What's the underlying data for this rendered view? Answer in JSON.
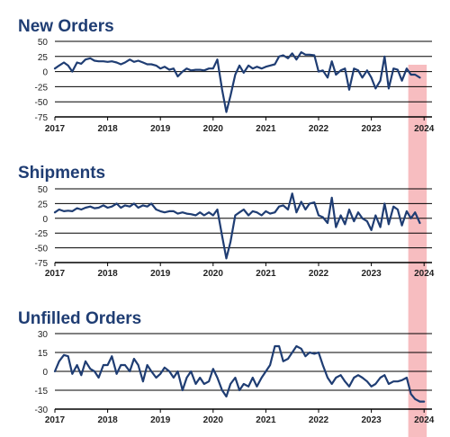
{
  "colors": {
    "line": "#1f3d73",
    "title": "#1f3d73",
    "axis": "#000000",
    "highlight": "#f4a7ab"
  },
  "chart_data": [
    {
      "type": "line",
      "title": "New Orders",
      "xlabel": "",
      "ylabel": "",
      "ylim": [
        -75,
        50
      ],
      "yticks": [
        "50",
        "25",
        "0",
        "-25",
        "-50",
        "-75"
      ],
      "xticks": [
        "2017",
        "2018",
        "2019",
        "2020",
        "2021",
        "2022",
        "2023",
        "2024"
      ],
      "xlim": [
        2017,
        2024.15
      ],
      "grid": "horizontal",
      "highlight_range": [
        2023.7,
        2024.05
      ],
      "series": [
        {
          "values": [
            [
              2017.0,
              5
            ],
            [
              2017.08,
              10
            ],
            [
              2017.17,
              15
            ],
            [
              2017.25,
              10
            ],
            [
              2017.33,
              0
            ],
            [
              2017.42,
              15
            ],
            [
              2017.5,
              13
            ],
            [
              2017.58,
              20
            ],
            [
              2017.67,
              22
            ],
            [
              2017.75,
              18
            ],
            [
              2017.83,
              17
            ],
            [
              2017.92,
              17
            ],
            [
              2018.0,
              16
            ],
            [
              2018.08,
              17
            ],
            [
              2018.17,
              15
            ],
            [
              2018.25,
              12
            ],
            [
              2018.33,
              15
            ],
            [
              2018.42,
              20
            ],
            [
              2018.5,
              16
            ],
            [
              2018.58,
              18
            ],
            [
              2018.67,
              15
            ],
            [
              2018.75,
              12
            ],
            [
              2018.83,
              12
            ],
            [
              2018.92,
              10
            ],
            [
              2019.0,
              5
            ],
            [
              2019.08,
              8
            ],
            [
              2019.17,
              3
            ],
            [
              2019.25,
              5
            ],
            [
              2019.33,
              -8
            ],
            [
              2019.42,
              0
            ],
            [
              2019.5,
              5
            ],
            [
              2019.58,
              2
            ],
            [
              2019.67,
              3
            ],
            [
              2019.75,
              3
            ],
            [
              2019.83,
              2
            ],
            [
              2019.92,
              5
            ],
            [
              2020.0,
              5
            ],
            [
              2020.08,
              20
            ],
            [
              2020.17,
              -30
            ],
            [
              2020.25,
              -67
            ],
            [
              2020.33,
              -40
            ],
            [
              2020.42,
              -5
            ],
            [
              2020.5,
              10
            ],
            [
              2020.58,
              -2
            ],
            [
              2020.67,
              10
            ],
            [
              2020.75,
              5
            ],
            [
              2020.83,
              8
            ],
            [
              2020.92,
              5
            ],
            [
              2021.0,
              8
            ],
            [
              2021.08,
              10
            ],
            [
              2021.17,
              12
            ],
            [
              2021.25,
              25
            ],
            [
              2021.33,
              27
            ],
            [
              2021.42,
              22
            ],
            [
              2021.5,
              30
            ],
            [
              2021.58,
              20
            ],
            [
              2021.67,
              32
            ],
            [
              2021.75,
              28
            ],
            [
              2021.83,
              28
            ],
            [
              2021.92,
              27
            ],
            [
              2022.0,
              0
            ],
            [
              2022.08,
              2
            ],
            [
              2022.17,
              -10
            ],
            [
              2022.25,
              17
            ],
            [
              2022.33,
              -5
            ],
            [
              2022.42,
              2
            ],
            [
              2022.5,
              5
            ],
            [
              2022.58,
              -30
            ],
            [
              2022.67,
              5
            ],
            [
              2022.75,
              2
            ],
            [
              2022.83,
              -10
            ],
            [
              2022.92,
              2
            ],
            [
              2023.0,
              -10
            ],
            [
              2023.08,
              -28
            ],
            [
              2023.17,
              -15
            ],
            [
              2023.25,
              25
            ],
            [
              2023.33,
              -28
            ],
            [
              2023.42,
              5
            ],
            [
              2023.5,
              3
            ],
            [
              2023.58,
              -15
            ],
            [
              2023.67,
              5
            ],
            [
              2023.75,
              -5
            ],
            [
              2023.83,
              -5
            ],
            [
              2023.92,
              -10
            ]
          ]
        }
      ]
    },
    {
      "type": "line",
      "title": "Shipments",
      "xlabel": "",
      "ylabel": "",
      "ylim": [
        -75,
        50
      ],
      "yticks": [
        "50",
        "25",
        "0",
        "-25",
        "-50",
        "-75"
      ],
      "xticks": [
        "2017",
        "2018",
        "2019",
        "2020",
        "2021",
        "2022",
        "2023",
        "2024"
      ],
      "xlim": [
        2017,
        2024.15
      ],
      "grid": "horizontal",
      "highlight_range": [
        2023.7,
        2024.05
      ],
      "series": [
        {
          "values": [
            [
              2017.0,
              10
            ],
            [
              2017.08,
              15
            ],
            [
              2017.17,
              12
            ],
            [
              2017.25,
              13
            ],
            [
              2017.33,
              12
            ],
            [
              2017.42,
              17
            ],
            [
              2017.5,
              15
            ],
            [
              2017.58,
              18
            ],
            [
              2017.67,
              20
            ],
            [
              2017.75,
              17
            ],
            [
              2017.83,
              18
            ],
            [
              2017.92,
              22
            ],
            [
              2018.0,
              18
            ],
            [
              2018.08,
              20
            ],
            [
              2018.17,
              25
            ],
            [
              2018.25,
              18
            ],
            [
              2018.33,
              22
            ],
            [
              2018.42,
              20
            ],
            [
              2018.5,
              25
            ],
            [
              2018.58,
              18
            ],
            [
              2018.67,
              22
            ],
            [
              2018.75,
              20
            ],
            [
              2018.83,
              25
            ],
            [
              2018.92,
              15
            ],
            [
              2019.0,
              12
            ],
            [
              2019.08,
              10
            ],
            [
              2019.17,
              12
            ],
            [
              2019.25,
              12
            ],
            [
              2019.33,
              8
            ],
            [
              2019.42,
              10
            ],
            [
              2019.5,
              8
            ],
            [
              2019.58,
              7
            ],
            [
              2019.67,
              5
            ],
            [
              2019.75,
              10
            ],
            [
              2019.83,
              5
            ],
            [
              2019.92,
              10
            ],
            [
              2020.0,
              5
            ],
            [
              2020.08,
              15
            ],
            [
              2020.17,
              -30
            ],
            [
              2020.25,
              -68
            ],
            [
              2020.33,
              -40
            ],
            [
              2020.42,
              5
            ],
            [
              2020.5,
              10
            ],
            [
              2020.58,
              15
            ],
            [
              2020.67,
              5
            ],
            [
              2020.75,
              12
            ],
            [
              2020.83,
              10
            ],
            [
              2020.92,
              5
            ],
            [
              2021.0,
              12
            ],
            [
              2021.08,
              8
            ],
            [
              2021.17,
              10
            ],
            [
              2021.25,
              20
            ],
            [
              2021.33,
              22
            ],
            [
              2021.42,
              15
            ],
            [
              2021.5,
              42
            ],
            [
              2021.58,
              10
            ],
            [
              2021.67,
              28
            ],
            [
              2021.75,
              15
            ],
            [
              2021.83,
              25
            ],
            [
              2021.92,
              27
            ],
            [
              2022.0,
              5
            ],
            [
              2022.08,
              2
            ],
            [
              2022.17,
              -8
            ],
            [
              2022.25,
              35
            ],
            [
              2022.33,
              -15
            ],
            [
              2022.42,
              5
            ],
            [
              2022.5,
              -10
            ],
            [
              2022.58,
              15
            ],
            [
              2022.67,
              -5
            ],
            [
              2022.75,
              10
            ],
            [
              2022.83,
              0
            ],
            [
              2022.92,
              -5
            ],
            [
              2023.0,
              -20
            ],
            [
              2023.08,
              5
            ],
            [
              2023.17,
              -15
            ],
            [
              2023.25,
              25
            ],
            [
              2023.33,
              -10
            ],
            [
              2023.42,
              20
            ],
            [
              2023.5,
              15
            ],
            [
              2023.58,
              -12
            ],
            [
              2023.67,
              12
            ],
            [
              2023.75,
              0
            ],
            [
              2023.83,
              10
            ],
            [
              2023.92,
              -8
            ]
          ]
        }
      ]
    },
    {
      "type": "line",
      "title": "Unfilled Orders",
      "xlabel": "",
      "ylabel": "",
      "ylim": [
        -30,
        30
      ],
      "yticks": [
        "30",
        "15",
        "0",
        "-15",
        "-30"
      ],
      "xticks": [
        "2017",
        "2018",
        "2019",
        "2020",
        "2021",
        "2022",
        "2023",
        "2024"
      ],
      "xlim": [
        2017,
        2024.15
      ],
      "grid": "horizontal",
      "highlight_range": [
        2023.7,
        2024.05
      ],
      "series": [
        {
          "values": [
            [
              2017.0,
              0
            ],
            [
              2017.08,
              8
            ],
            [
              2017.17,
              13
            ],
            [
              2017.25,
              12
            ],
            [
              2017.33,
              -2
            ],
            [
              2017.42,
              5
            ],
            [
              2017.5,
              -3
            ],
            [
              2017.58,
              8
            ],
            [
              2017.67,
              2
            ],
            [
              2017.75,
              0
            ],
            [
              2017.83,
              -5
            ],
            [
              2017.92,
              5
            ],
            [
              2018.0,
              5
            ],
            [
              2018.08,
              12
            ],
            [
              2018.17,
              -2
            ],
            [
              2018.25,
              5
            ],
            [
              2018.33,
              5
            ],
            [
              2018.42,
              0
            ],
            [
              2018.5,
              10
            ],
            [
              2018.58,
              5
            ],
            [
              2018.67,
              -8
            ],
            [
              2018.75,
              5
            ],
            [
              2018.83,
              0
            ],
            [
              2018.92,
              -5
            ],
            [
              2019.0,
              -2
            ],
            [
              2019.08,
              3
            ],
            [
              2019.17,
              0
            ],
            [
              2019.25,
              -5
            ],
            [
              2019.33,
              0
            ],
            [
              2019.42,
              -15
            ],
            [
              2019.5,
              -5
            ],
            [
              2019.58,
              0
            ],
            [
              2019.67,
              -10
            ],
            [
              2019.75,
              -5
            ],
            [
              2019.83,
              -10
            ],
            [
              2019.92,
              -8
            ],
            [
              2020.0,
              2
            ],
            [
              2020.08,
              -5
            ],
            [
              2020.17,
              -15
            ],
            [
              2020.25,
              -20
            ],
            [
              2020.33,
              -10
            ],
            [
              2020.42,
              -5
            ],
            [
              2020.5,
              -15
            ],
            [
              2020.58,
              -10
            ],
            [
              2020.67,
              -12
            ],
            [
              2020.75,
              -5
            ],
            [
              2020.83,
              -12
            ],
            [
              2020.92,
              -5
            ],
            [
              2021.0,
              0
            ],
            [
              2021.08,
              5
            ],
            [
              2021.17,
              20
            ],
            [
              2021.25,
              20
            ],
            [
              2021.33,
              8
            ],
            [
              2021.42,
              10
            ],
            [
              2021.5,
              15
            ],
            [
              2021.58,
              20
            ],
            [
              2021.67,
              18
            ],
            [
              2021.75,
              12
            ],
            [
              2021.83,
              15
            ],
            [
              2021.92,
              14
            ],
            [
              2022.0,
              15
            ],
            [
              2022.08,
              5
            ],
            [
              2022.17,
              -5
            ],
            [
              2022.25,
              -10
            ],
            [
              2022.33,
              -5
            ],
            [
              2022.42,
              -3
            ],
            [
              2022.5,
              -8
            ],
            [
              2022.58,
              -12
            ],
            [
              2022.67,
              -5
            ],
            [
              2022.75,
              -3
            ],
            [
              2022.83,
              -5
            ],
            [
              2022.92,
              -8
            ],
            [
              2023.0,
              -12
            ],
            [
              2023.08,
              -10
            ],
            [
              2023.17,
              -5
            ],
            [
              2023.25,
              -3
            ],
            [
              2023.33,
              -10
            ],
            [
              2023.42,
              -8
            ],
            [
              2023.5,
              -8
            ],
            [
              2023.58,
              -7
            ],
            [
              2023.67,
              -5
            ],
            [
              2023.75,
              -18
            ],
            [
              2023.83,
              -22
            ],
            [
              2023.92,
              -24
            ],
            [
              2024.0,
              -24
            ]
          ]
        }
      ]
    }
  ]
}
